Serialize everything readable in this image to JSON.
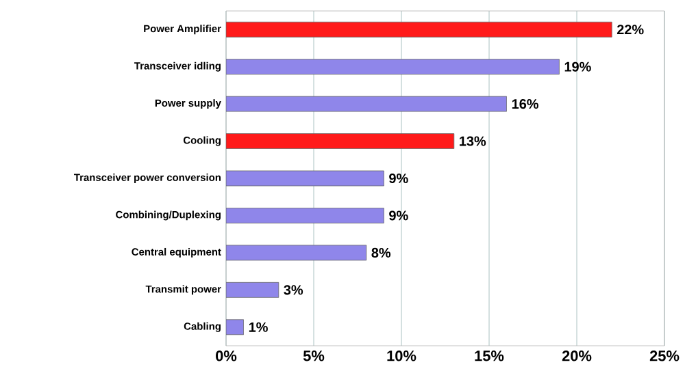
{
  "chart_data": {
    "type": "bar",
    "orientation": "horizontal",
    "categories": [
      "Power Amplifier",
      "Transceiver idling",
      "Power supply",
      "Cooling",
      "Transceiver power conversion",
      "Combining/Duplexing",
      "Central equipment",
      "Transmit power",
      "Cabling"
    ],
    "values": [
      22,
      19,
      16,
      13,
      9,
      9,
      8,
      3,
      1
    ],
    "colors": [
      "#ff1a1a",
      "#8f86ea",
      "#8f86ea",
      "#ff1a1a",
      "#8f86ea",
      "#8f86ea",
      "#8f86ea",
      "#8f86ea",
      "#8f86ea"
    ],
    "value_labels": [
      "22%",
      "19%",
      "16%",
      "13%",
      "9%",
      "9%",
      "8%",
      "3%",
      "1%"
    ],
    "xlim": [
      0,
      25
    ],
    "xticks": [
      {
        "value": 0,
        "label": "0%"
      },
      {
        "value": 5,
        "label": "5%"
      },
      {
        "value": 10,
        "label": "10%"
      },
      {
        "value": 15,
        "label": "15%"
      },
      {
        "value": 20,
        "label": "20%"
      },
      {
        "value": 25,
        "label": "25%"
      }
    ],
    "grid": "x"
  }
}
